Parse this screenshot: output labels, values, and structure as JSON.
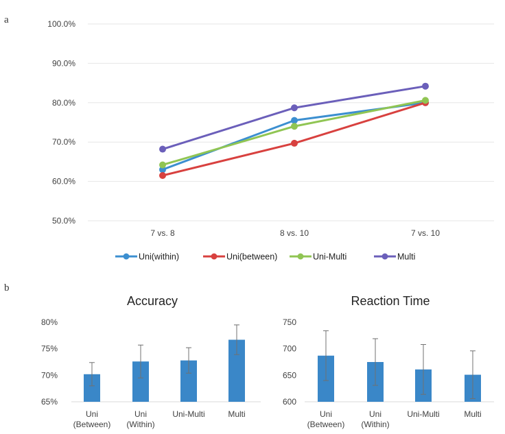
{
  "panel_labels": {
    "a": "a",
    "b": "b"
  },
  "colors": {
    "uni_within": "#3c8fd0",
    "uni_between": "#d8413f",
    "uni_multi": "#90c553",
    "multi": "#6b5fba",
    "bar": "#3a87c8",
    "error": "#707070"
  },
  "chart_data": [
    {
      "type": "line",
      "title": "",
      "xlabel": "",
      "ylabel": "",
      "categories": [
        "7 vs. 8",
        "8 vs. 10",
        "7 vs. 10"
      ],
      "ylim": [
        50,
        100
      ],
      "yticks": [
        "50.0%",
        "60.0%",
        "70.0%",
        "80.0%",
        "90.0%",
        "100.0%"
      ],
      "grid": true,
      "legend": "bottom",
      "series": [
        {
          "name": "Uni(within)",
          "values": [
            63.0,
            75.5,
            80.0
          ]
        },
        {
          "name": "Uni(between)",
          "values": [
            61.5,
            69.7,
            80.0
          ]
        },
        {
          "name": "Uni-Multi",
          "values": [
            64.2,
            74.0,
            80.6
          ]
        },
        {
          "name": "Multi",
          "values": [
            68.2,
            78.7,
            84.2
          ]
        }
      ]
    },
    {
      "type": "bar",
      "title": "Accuracy",
      "categories": [
        [
          "Uni",
          "(Between)"
        ],
        [
          "Uni",
          "(Within)"
        ],
        [
          "Uni-Multi"
        ],
        [
          "Multi"
        ]
      ],
      "values": [
        70.2,
        72.6,
        72.8,
        76.7
      ],
      "errors": [
        2.2,
        3.1,
        2.4,
        2.8
      ],
      "ylim": [
        65,
        80
      ],
      "yticks": [
        "65%",
        "70%",
        "75%",
        "80%"
      ],
      "grid": false
    },
    {
      "type": "bar",
      "title": "Reaction Time",
      "categories": [
        [
          "Uni",
          "(Between)"
        ],
        [
          "Uni",
          "(Within)"
        ],
        [
          "Uni-Multi"
        ],
        [
          "Multi"
        ]
      ],
      "values": [
        687,
        675,
        661,
        651
      ],
      "errors": [
        47,
        44,
        47,
        45
      ],
      "ylim": [
        600,
        750
      ],
      "yticks": [
        "600",
        "650",
        "700",
        "750"
      ],
      "grid": false
    }
  ]
}
